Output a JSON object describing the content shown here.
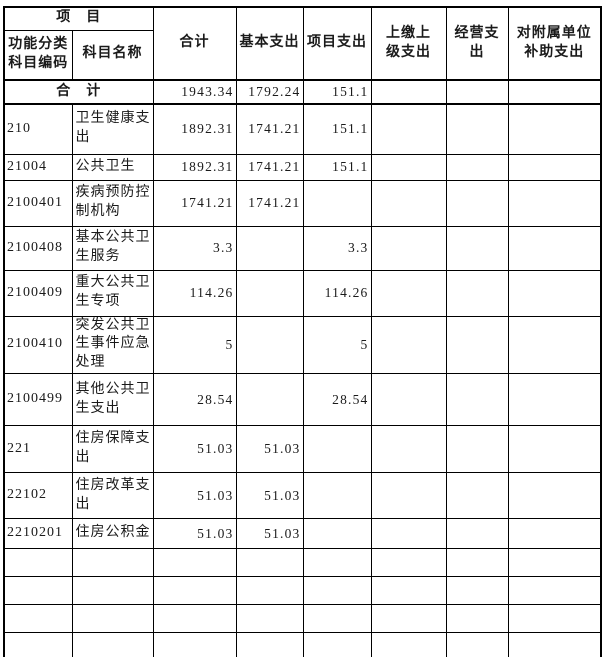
{
  "table": {
    "header": {
      "project_group": "项　目",
      "code": "功能分类\n科目编码",
      "name": "科目名称",
      "total": "合计",
      "basic": "基本支出",
      "project": "项目支出",
      "upper": "上缴上\n级支出",
      "operating": "经营支\n出",
      "subsidy": "对附属单位\n补助支出"
    },
    "total_row": {
      "label": "合　计",
      "total": "1943.34",
      "basic": "1792.24",
      "project": "151.1",
      "upper": "",
      "operating": "",
      "subsidy": ""
    },
    "rows": [
      {
        "code": "210",
        "name": "卫生健康支\n出",
        "total": "1892.31",
        "basic": "1741.21",
        "project": "151.1",
        "upper": "",
        "operating": "",
        "subsidy": ""
      },
      {
        "code": "21004",
        "name": "公共卫生",
        "total": "1892.31",
        "basic": "1741.21",
        "project": "151.1",
        "upper": "",
        "operating": "",
        "subsidy": ""
      },
      {
        "code": "2100401",
        "name": "疾病预防控\n制机构",
        "total": "1741.21",
        "basic": "1741.21",
        "project": "",
        "upper": "",
        "operating": "",
        "subsidy": ""
      },
      {
        "code": "2100408",
        "name": "基本公共卫\n生服务",
        "total": "3.3",
        "basic": "",
        "project": "3.3",
        "upper": "",
        "operating": "",
        "subsidy": ""
      },
      {
        "code": "2100409",
        "name": "重大公共卫\n生专项",
        "total": "114.26",
        "basic": "",
        "project": "114.26",
        "upper": "",
        "operating": "",
        "subsidy": ""
      },
      {
        "code": "2100410",
        "name": "突发公共卫\n生事件应急\n处理",
        "total": "5",
        "basic": "",
        "project": "5",
        "upper": "",
        "operating": "",
        "subsidy": ""
      },
      {
        "code": "2100499",
        "name": "其他公共卫\n生支出",
        "total": "28.54",
        "basic": "",
        "project": "28.54",
        "upper": "",
        "operating": "",
        "subsidy": ""
      },
      {
        "code": "221",
        "name": "住房保障支\n出",
        "total": "51.03",
        "basic": "51.03",
        "project": "",
        "upper": "",
        "operating": "",
        "subsidy": ""
      },
      {
        "code": "22102",
        "name": "住房改革支\n出",
        "total": "51.03",
        "basic": "51.03",
        "project": "",
        "upper": "",
        "operating": "",
        "subsidy": ""
      },
      {
        "code": "2210201",
        "name": "住房公积金",
        "total": "51.03",
        "basic": "51.03",
        "project": "",
        "upper": "",
        "operating": "",
        "subsidy": ""
      },
      {
        "code": "",
        "name": "",
        "total": "",
        "basic": "",
        "project": "",
        "upper": "",
        "operating": "",
        "subsidy": ""
      },
      {
        "code": "",
        "name": "",
        "total": "",
        "basic": "",
        "project": "",
        "upper": "",
        "operating": "",
        "subsidy": ""
      },
      {
        "code": "",
        "name": "",
        "total": "",
        "basic": "",
        "project": "",
        "upper": "",
        "operating": "",
        "subsidy": ""
      },
      {
        "code": "",
        "name": "",
        "total": "",
        "basic": "",
        "project": "",
        "upper": "",
        "operating": "",
        "subsidy": ""
      }
    ]
  },
  "colors": {
    "border": "#000000",
    "text": "#1a1a1a",
    "background": "#ffffff"
  }
}
